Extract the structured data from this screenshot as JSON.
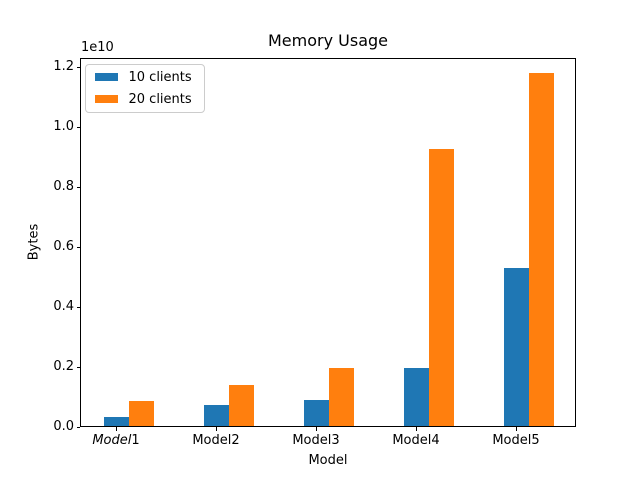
{
  "chart_data": {
    "type": "bar",
    "title": "Memory Usage",
    "xlabel": "Model",
    "ylabel": "Bytes",
    "offset_text": "1e10",
    "grid": false,
    "legend_position": "upper left",
    "categories": [
      {
        "italic_text": "Model",
        "text": "1"
      },
      {
        "italic_text": "",
        "text": "Model2"
      },
      {
        "italic_text": "",
        "text": "Model3"
      },
      {
        "italic_text": "",
        "text": "Model4"
      },
      {
        "italic_text": "",
        "text": "Model5"
      }
    ],
    "series": [
      {
        "name": "10 clients",
        "color": "#1f77b4",
        "values": [
          300000000,
          700000000,
          880000000,
          1940000000,
          5270000000
        ]
      },
      {
        "name": "20 clients",
        "color": "#ff7f0e",
        "values": [
          850000000,
          1390000000,
          1930000000,
          9230000000,
          11770000000
        ]
      }
    ],
    "yticks": {
      "values": [
        0,
        2000000000,
        4000000000,
        6000000000,
        8000000000,
        10000000000,
        12000000000
      ],
      "labels": [
        "0.0",
        "0.2",
        "0.4",
        "0.6",
        "0.8",
        "1.0",
        "1.2"
      ]
    },
    "ylim": [
      0,
      12320000000
    ]
  }
}
